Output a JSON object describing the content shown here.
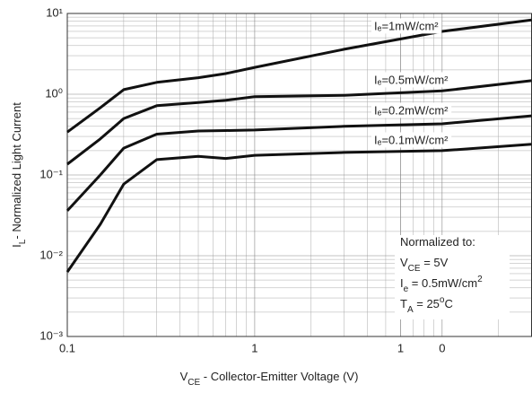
{
  "chart_data": {
    "type": "line",
    "x_label": [
      {
        "t": "V"
      },
      {
        "t": "CE",
        "sub": true
      },
      {
        "t": " - Collector-Emitter Voltage (V)"
      }
    ],
    "y_label": [
      {
        "t": "I"
      },
      {
        "t": "L",
        "sub": true
      },
      {
        "t": "- Normalized Light Current"
      }
    ],
    "x": [
      0.1,
      0.15,
      0.2,
      0.3,
      0.5,
      0.7,
      1,
      3,
      10,
      30
    ],
    "series": [
      {
        "name": "Iₑ=1mW/cm²",
        "color": "#111111",
        "values": [
          0.34,
          0.68,
          1.14,
          1.4,
          1.6,
          1.8,
          2.15,
          3.6,
          6,
          8.3
        ]
      },
      {
        "name": "Iₑ=0.5mW/cm²",
        "color": "#111111",
        "values": [
          0.136,
          0.28,
          0.5,
          0.72,
          0.79,
          0.84,
          0.93,
          0.97,
          1.1,
          1.47
        ]
      },
      {
        "name": "Iₑ=0.2mW/cm²",
        "color": "#111111",
        "values": [
          0.036,
          0.1,
          0.215,
          0.32,
          0.35,
          0.355,
          0.36,
          0.4,
          0.43,
          0.54
        ]
      },
      {
        "name": "Iₑ=0.1mW/cm²",
        "color": "#111111",
        "values": [
          0.0063,
          0.0245,
          0.077,
          0.155,
          0.17,
          0.16,
          0.175,
          0.19,
          0.2,
          0.24
        ]
      }
    ],
    "xlim": [
      0.1,
      30
    ],
    "ylim": [
      0.001,
      10
    ],
    "xlog": true,
    "ylog": true,
    "grid": true,
    "minor_grid": true,
    "xticks": [
      0.1,
      1,
      {
        "value": 6,
        "label": "1"
      },
      {
        "value": 10,
        "label": "0"
      }
    ],
    "yticks": [
      {
        "value": 0.001,
        "label": "10⁻³"
      },
      {
        "value": 0.01,
        "label": "10⁻²"
      },
      {
        "value": 0.1,
        "label": "10⁻¹"
      },
      {
        "value": 1,
        "label": "10⁰"
      },
      {
        "value": 10,
        "label": "10¹"
      }
    ],
    "annotation": [
      [
        {
          "t": "Normalized to:"
        }
      ],
      [
        {
          "t": "V"
        },
        {
          "t": "CE",
          "sub": true
        },
        {
          "t": " = 5V"
        }
      ],
      [
        {
          "t": "I"
        },
        {
          "t": "e",
          "sub": true
        },
        {
          "t": " = 0.5mW/cm"
        },
        {
          "t": "2",
          "sup": true
        }
      ],
      [
        {
          "t": "T"
        },
        {
          "t": "A",
          "sub": true
        },
        {
          "t": " = 25"
        },
        {
          "t": "o",
          "sup": true
        },
        {
          "t": "C"
        }
      ]
    ]
  }
}
